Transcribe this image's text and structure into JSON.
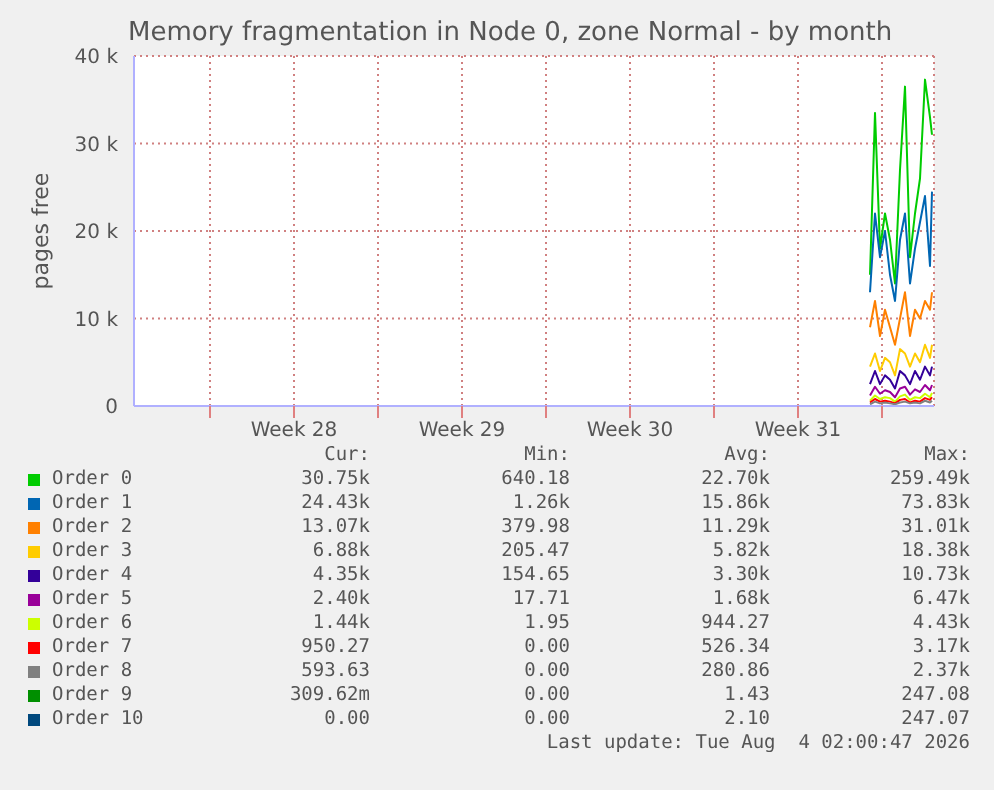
{
  "chart_data": {
    "type": "line",
    "title": "Memory fragmentation in Node 0, zone Normal - by month",
    "ylabel": "pages free",
    "x": [
      "2026-08-02T12:00",
      "2026-08-02T17:00",
      "2026-08-02T22:00",
      "2026-08-03T03:00",
      "2026-08-03T08:00",
      "2026-08-03T13:00",
      "2026-08-03T18:00",
      "2026-08-03T23:00",
      "2026-08-04T04:00",
      "2026-08-04T09:00",
      "2026-08-04T14:00",
      "2026-08-04T19:00",
      "2026-08-05T00:00",
      "2026-08-05T02:00"
    ],
    "xlim": [
      "2026-07-02T20:00",
      "2026-08-05T04:00"
    ],
    "xticks": [
      {
        "value": "2026-07-06T00:00",
        "label": null
      },
      {
        "value": "2026-07-09T12:00",
        "label": "Week 28"
      },
      {
        "value": "2026-07-13T00:00",
        "label": null
      },
      {
        "value": "2026-07-16T12:00",
        "label": "Week 29"
      },
      {
        "value": "2026-07-20T00:00",
        "label": null
      },
      {
        "value": "2026-07-23T12:00",
        "label": "Week 30"
      },
      {
        "value": "2026-07-27T00:00",
        "label": null
      },
      {
        "value": "2026-07-30T12:00",
        "label": "Week 31"
      },
      {
        "value": "2026-08-03T00:00",
        "label": null
      }
    ],
    "ylim": [
      0,
      40000
    ],
    "yticks": [
      0,
      {
        "value": 10000,
        "label": "10 k"
      },
      {
        "value": 20000,
        "label": "20 k"
      },
      {
        "value": 30000,
        "label": "30 k"
      },
      {
        "value": 40000,
        "label": "40 k"
      }
    ],
    "grid": true,
    "legend": "bottom",
    "series": [
      {
        "name": "Order 0",
        "color": "#00cc00",
        "values": [
          15000,
          33500,
          18000,
          22000,
          19000,
          14000,
          27000,
          36500,
          17000,
          22000,
          26000,
          37300,
          33000,
          31000
        ]
      },
      {
        "name": "Order 1",
        "color": "#0066b3",
        "values": [
          13000,
          22000,
          17000,
          20000,
          15000,
          12000,
          19000,
          22000,
          14000,
          18000,
          21000,
          24000,
          16000,
          24500
        ]
      },
      {
        "name": "Order 2",
        "color": "#ff8000",
        "values": [
          9000,
          12000,
          8000,
          11000,
          9000,
          7000,
          10000,
          13000,
          8000,
          11000,
          10000,
          12000,
          11000,
          13000
        ]
      },
      {
        "name": "Order 3",
        "color": "#ffcc00",
        "values": [
          4500,
          6000,
          4000,
          5500,
          5000,
          3500,
          6500,
          6000,
          4500,
          6000,
          5000,
          7000,
          5500,
          7000
        ]
      },
      {
        "name": "Order 4",
        "color": "#330099",
        "values": [
          2500,
          4000,
          2500,
          3500,
          3000,
          2000,
          4000,
          3500,
          2500,
          4000,
          3000,
          4500,
          3500,
          4500
        ]
      },
      {
        "name": "Order 5",
        "color": "#990099",
        "values": [
          1200,
          2200,
          1400,
          1800,
          1600,
          1000,
          2000,
          2200,
          1300,
          1900,
          1600,
          2400,
          1800,
          2400
        ]
      },
      {
        "name": "Order 6",
        "color": "#ccff00",
        "values": [
          600,
          1200,
          800,
          1000,
          900,
          500,
          1100,
          1300,
          700,
          1000,
          900,
          1400,
          1000,
          1500
        ]
      },
      {
        "name": "Order 7",
        "color": "#ff0000",
        "values": [
          400,
          800,
          500,
          600,
          500,
          300,
          700,
          800,
          400,
          600,
          500,
          900,
          700,
          1000
        ]
      },
      {
        "name": "Order 8",
        "color": "#808080",
        "values": [
          200,
          500,
          300,
          400,
          300,
          200,
          400,
          500,
          300,
          400,
          300,
          600,
          400,
          600
        ]
      },
      {
        "name": "Order 9",
        "color": "#008f00",
        "values": [
          null,
          null,
          null,
          null,
          null,
          null,
          null,
          null,
          null,
          null,
          null,
          null,
          null,
          null
        ]
      },
      {
        "name": "Order 10",
        "color": "#00487d",
        "values": [
          null,
          null,
          null,
          null,
          null,
          null,
          null,
          null,
          null,
          null,
          null,
          null,
          null,
          null
        ]
      }
    ],
    "annotations": [
      "Cur:",
      "Min:",
      "Avg:",
      "Max:",
      "30.75k",
      "640.18",
      "22.70k",
      "259.49k",
      "24.43k",
      "1.26k",
      "15.86k",
      "73.83k",
      "13.07k",
      "379.98",
      "11.29k",
      "31.01k",
      "6.88k",
      "205.47",
      "5.82k",
      "18.38k",
      "4.35k",
      "154.65",
      "3.30k",
      "10.73k",
      "2.40k",
      "17.71",
      "1.68k",
      "6.47k",
      "1.44k",
      "1.95",
      "944.27",
      "4.43k",
      "950.27",
      "0.00",
      "526.34",
      "3.17k",
      "593.63",
      "0.00",
      "280.86",
      "2.37k",
      "309.62m",
      "0.00",
      "1.43",
      "247.08",
      "0.00",
      "0.00",
      "2.10",
      "247.07",
      "Last update: Tue Aug  4 02:00:47 2026"
    ]
  }
}
